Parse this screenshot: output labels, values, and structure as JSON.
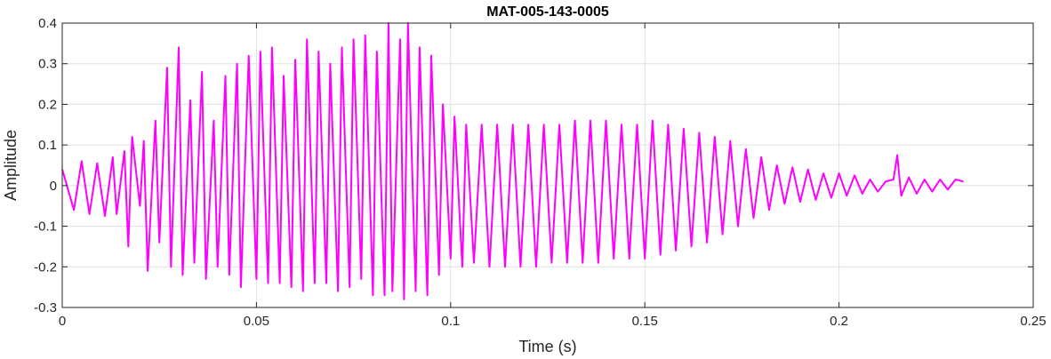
{
  "chart_data": {
    "type": "line",
    "title": "MAT-005-143-0005",
    "xlabel": "Time (s)",
    "ylabel": "Amplitude",
    "xlim": [
      0,
      0.25
    ],
    "ylim": [
      -0.3,
      0.4
    ],
    "x_ticks": [
      0,
      0.05,
      0.1,
      0.15,
      0.2,
      0.25
    ],
    "y_ticks": [
      -0.3,
      -0.2,
      -0.1,
      0,
      0.1,
      0.2,
      0.3,
      0.4
    ],
    "x_tick_labels": [
      "0",
      "0.05",
      "0.1",
      "0.15",
      "0.2",
      "0.25"
    ],
    "y_tick_labels": [
      "-0.3",
      "-0.2",
      "-0.1",
      "0",
      "0.1",
      "0.2",
      "0.3",
      "0.4"
    ],
    "grid": true,
    "series": [
      {
        "color": "#ff00ff",
        "x": [
          0,
          0.003,
          0.005,
          0.007,
          0.009,
          0.011,
          0.013,
          0.014,
          0.016,
          0.017,
          0.018,
          0.02,
          0.021,
          0.022,
          0.024,
          0.025,
          0.027,
          0.028,
          0.03,
          0.031,
          0.033,
          0.034,
          0.036,
          0.037,
          0.039,
          0.04,
          0.042,
          0.043,
          0.045,
          0.046,
          0.048,
          0.05,
          0.051,
          0.053,
          0.054,
          0.056,
          0.057,
          0.059,
          0.06,
          0.062,
          0.063,
          0.065,
          0.066,
          0.068,
          0.069,
          0.071,
          0.072,
          0.074,
          0.075,
          0.077,
          0.078,
          0.08,
          0.081,
          0.083,
          0.084,
          0.085,
          0.087,
          0.088,
          0.089,
          0.091,
          0.092,
          0.094,
          0.095,
          0.097,
          0.098,
          0.1,
          0.101,
          0.103,
          0.104,
          0.106,
          0.108,
          0.11,
          0.112,
          0.114,
          0.116,
          0.118,
          0.12,
          0.122,
          0.124,
          0.126,
          0.128,
          0.13,
          0.132,
          0.134,
          0.136,
          0.138,
          0.14,
          0.142,
          0.144,
          0.146,
          0.148,
          0.15,
          0.152,
          0.154,
          0.156,
          0.158,
          0.16,
          0.162,
          0.164,
          0.166,
          0.168,
          0.17,
          0.172,
          0.174,
          0.176,
          0.178,
          0.18,
          0.182,
          0.184,
          0.186,
          0.188,
          0.19,
          0.192,
          0.194,
          0.196,
          0.198,
          0.2,
          0.202,
          0.204,
          0.206,
          0.208,
          0.21,
          0.212,
          0.214,
          0.215,
          0.216,
          0.218,
          0.22,
          0.222,
          0.224,
          0.226,
          0.228,
          0.23,
          0.232
        ],
        "y": [
          0.04,
          -0.06,
          0.06,
          -0.07,
          0.055,
          -0.075,
          0.07,
          -0.07,
          0.085,
          -0.15,
          0.12,
          -0.05,
          0.11,
          -0.21,
          0.16,
          -0.14,
          0.29,
          -0.2,
          0.34,
          -0.22,
          0.21,
          -0.19,
          0.28,
          -0.23,
          0.16,
          -0.2,
          0.27,
          -0.22,
          0.3,
          -0.25,
          0.32,
          -0.23,
          0.33,
          -0.24,
          0.34,
          -0.24,
          0.27,
          -0.25,
          0.31,
          -0.26,
          0.36,
          -0.24,
          0.33,
          -0.24,
          0.3,
          -0.26,
          0.34,
          -0.25,
          0.36,
          -0.23,
          0.37,
          -0.27,
          0.33,
          -0.27,
          0.4,
          -0.26,
          0.36,
          -0.28,
          0.4,
          -0.26,
          0.34,
          -0.27,
          0.32,
          -0.22,
          0.2,
          -0.18,
          0.17,
          -0.2,
          0.15,
          -0.19,
          0.15,
          -0.2,
          0.15,
          -0.2,
          0.15,
          -0.2,
          0.15,
          -0.2,
          0.15,
          -0.19,
          0.15,
          -0.19,
          0.16,
          -0.19,
          0.16,
          -0.19,
          0.16,
          -0.18,
          0.15,
          -0.18,
          0.15,
          -0.18,
          0.16,
          -0.17,
          0.15,
          -0.16,
          0.14,
          -0.15,
          0.13,
          -0.14,
          0.12,
          -0.12,
          0.11,
          -0.1,
          0.09,
          -0.08,
          0.07,
          -0.06,
          0.05,
          -0.045,
          0.045,
          -0.04,
          0.04,
          -0.035,
          0.03,
          -0.03,
          0.03,
          -0.025,
          0.025,
          -0.02,
          0.015,
          -0.015,
          0.01,
          0.015,
          0.075,
          -0.025,
          0.02,
          -0.02,
          0.015,
          -0.015,
          0.015,
          -0.01,
          0.015,
          0.01
        ]
      }
    ]
  }
}
